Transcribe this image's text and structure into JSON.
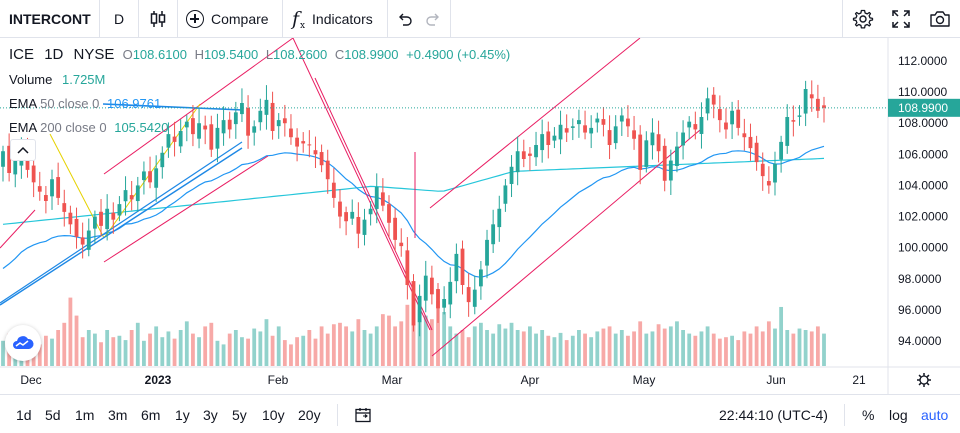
{
  "toolbar": {
    "symbol": "INTERCONT",
    "interval": "D",
    "compare_label": "Compare",
    "indicators_label": "Indicators",
    "indicators_icon_text": "f",
    "indicators_icon_sub": "x"
  },
  "legend": {
    "ticker": "ICE",
    "interval": "1D",
    "exchange": "NYSE",
    "open_key": "O",
    "open": "108.6100",
    "high_key": "H",
    "high": "109.5400",
    "low_key": "L",
    "low": "108.2600",
    "close_key": "C",
    "close": "108.9900",
    "change": "+0.4900 (+0.45%)",
    "volume_label": "Volume",
    "volume_value": "1.725M",
    "ema50_label": "EMA",
    "ema50_params": "50 close 0",
    "ema50_value": "106.9761",
    "ema200_label": "EMA",
    "ema200_params": "200 close 0",
    "ema200_value": "105.5420"
  },
  "price_axis": {
    "ticks": [
      "112.0000",
      "110.0000",
      "108.0000",
      "106.0000",
      "104.0000",
      "102.0000",
      "100.0000",
      "98.0000",
      "96.0000",
      "94.0000"
    ],
    "current_price": "108.9900"
  },
  "time_axis": {
    "labels": [
      {
        "text": "Dec",
        "bold": false
      },
      {
        "text": "2023",
        "bold": true
      },
      {
        "text": "Feb",
        "bold": false
      },
      {
        "text": "Mar",
        "bold": false
      },
      {
        "text": "Apr",
        "bold": false
      },
      {
        "text": "May",
        "bold": false
      },
      {
        "text": "Jun",
        "bold": false
      },
      {
        "text": "21",
        "bold": false
      }
    ]
  },
  "bottom_bar": {
    "ranges": [
      "1d",
      "5d",
      "1m",
      "3m",
      "6m",
      "1y",
      "3y",
      "5y",
      "10y",
      "20y"
    ],
    "clock": "22:44:10 (UTC-4)",
    "percent_label": "%",
    "log_label": "log",
    "auto_label": "auto"
  },
  "colors": {
    "up": "#26a69a",
    "down": "#ef5350",
    "up_volume": "#92d2cc",
    "down_volume": "#f7a9a7",
    "ema50": "#2196f3",
    "ema200": "#26c6da",
    "channel_lines": "#e91e63",
    "trend_line": "#1e88e5",
    "fib_line": "#e6d200",
    "accent": "#2962ff"
  }
}
